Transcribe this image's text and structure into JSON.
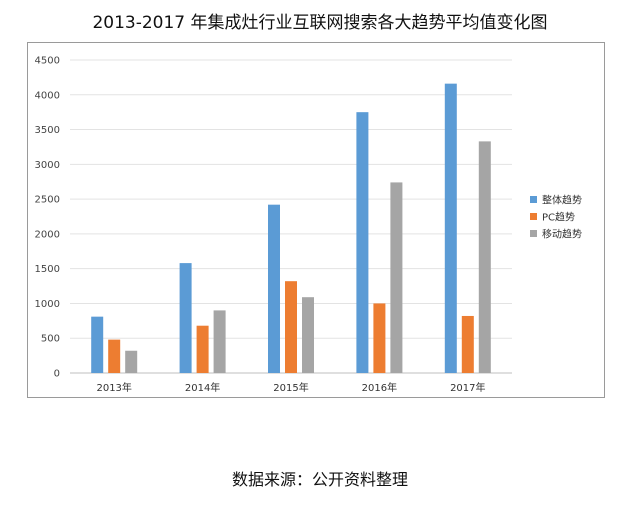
{
  "title": "2013-2017 年集成灶行业互联网搜索各大趋势平均值变化图",
  "source": "数据来源：公开资料整理",
  "chart_data": {
    "type": "bar",
    "categories": [
      "2013年",
      "2014年",
      "2015年",
      "2016年",
      "2017年"
    ],
    "series": [
      {
        "name": "整体趋势",
        "color": "#5b9bd5",
        "values": [
          810,
          1580,
          2420,
          3750,
          4160
        ]
      },
      {
        "name": "PC趋势",
        "color": "#ed7d31",
        "values": [
          480,
          680,
          1320,
          1000,
          820
        ]
      },
      {
        "name": "移动趋势",
        "color": "#a5a5a5",
        "values": [
          320,
          900,
          1090,
          2740,
          3330
        ]
      }
    ],
    "yticks": [
      "0",
      "500",
      "1000",
      "1500",
      "2000",
      "2500",
      "3000",
      "3500",
      "4000",
      "4500"
    ],
    "ylim": [
      0,
      4500
    ],
    "grid": true,
    "legend": "right"
  }
}
